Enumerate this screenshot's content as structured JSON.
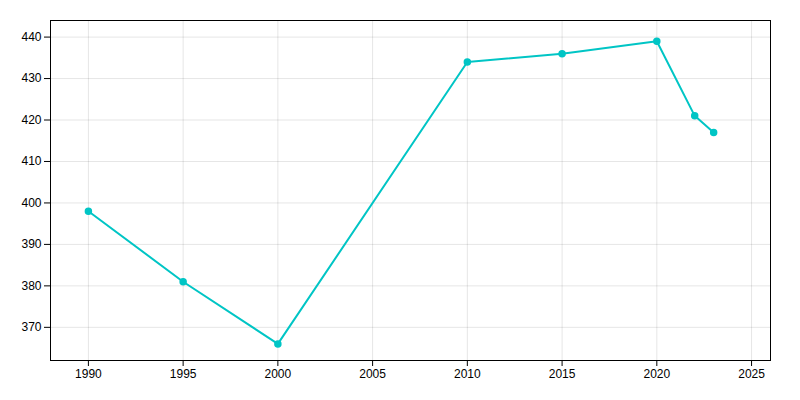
{
  "chart_data": {
    "type": "line",
    "x": [
      1990,
      1995,
      2000,
      2010,
      2015,
      2020,
      2022,
      2023
    ],
    "values": [
      398,
      381,
      366,
      434,
      436,
      439,
      421,
      417
    ],
    "color": "#00C5C5",
    "marker": "circle",
    "xlim": [
      1988,
      2026
    ],
    "ylim": [
      362,
      444
    ],
    "xticks": [
      1990,
      1995,
      2000,
      2005,
      2010,
      2015,
      2020,
      2025
    ],
    "yticks": [
      370,
      380,
      390,
      400,
      410,
      420,
      430,
      440
    ],
    "grid": true
  }
}
